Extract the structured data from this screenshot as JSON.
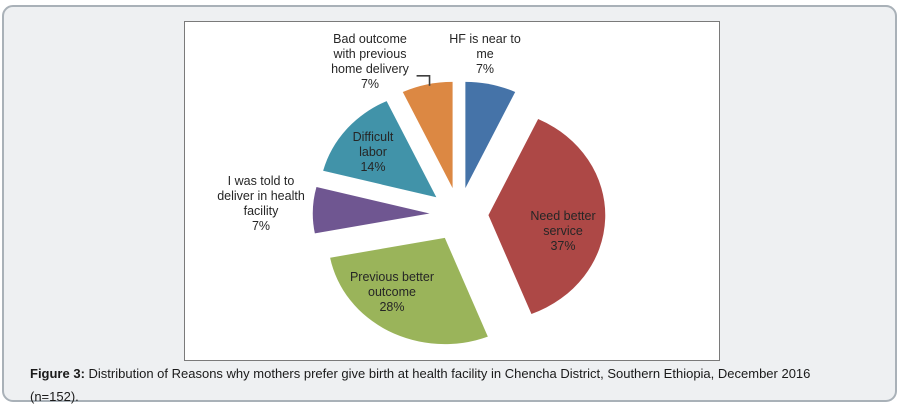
{
  "caption": {
    "label": "Figure 3:",
    "line1": "Distribution of Reasons why mothers prefer give birth at health facility in Chencha District, Southern Ethiopia, December 2016",
    "line2": "(n=152)."
  },
  "chart_data": {
    "type": "pie",
    "exploded": true,
    "start_angle_deg": 0,
    "direction": "clockwise",
    "unit": "%",
    "legend": "none",
    "data_labels": "category name and percentage",
    "categories": [
      "HF is near to me",
      "Need better service",
      "Previous better outcome",
      "I was told to deliver in health facility",
      "Difficult labor",
      "Bad outcome with previous home delivery"
    ],
    "values": [
      7,
      37,
      28,
      7,
      14,
      7
    ],
    "slices": [
      {
        "label": "HF is near to me",
        "pct": 7,
        "color": "#4573A8",
        "label_lines": "HF is near to\nme\n7%"
      },
      {
        "label": "Need better service",
        "pct": 37,
        "color": "#AD4846",
        "label_lines": "Need better\nservice\n37%"
      },
      {
        "label": "Previous better outcome",
        "pct": 28,
        "color": "#9AB45A",
        "label_lines": "Previous better\noutcome\n28%"
      },
      {
        "label": "I was told to deliver in health facility",
        "pct": 7,
        "color": "#6F5691",
        "label_lines": "I was told to\ndeliver in health\nfacility\n7%"
      },
      {
        "label": "Difficult labor",
        "pct": 14,
        "color": "#4193A9",
        "label_lines": "Difficult\nlabor\n14%"
      },
      {
        "label": "Bad outcome with previous home delivery",
        "pct": 7,
        "color": "#DC8843",
        "label_lines": "Bad outcome\nwith previous\nhome delivery\n7%"
      }
    ],
    "leader_line_color": "#3f3f3f"
  }
}
